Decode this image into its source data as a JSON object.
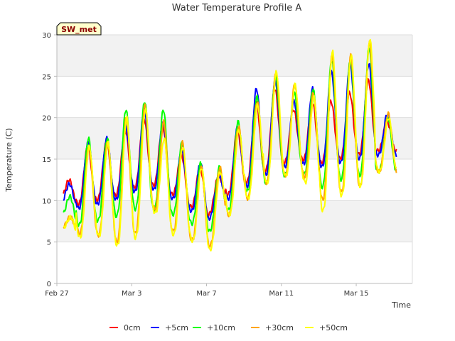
{
  "chart_data": {
    "type": "line",
    "title": "Water Temperature Profile A",
    "xlabel": "Time",
    "ylabel": "Temperature (C)",
    "badge": "SW_met",
    "x_start": "Feb 27",
    "x_end": "Mar 17",
    "xlim": [
      0,
      19
    ],
    "ylim": [
      0,
      30
    ],
    "yticks": [
      0,
      5,
      10,
      15,
      20,
      25,
      30
    ],
    "xticks": [
      {
        "label": "Feb 27",
        "day": 0
      },
      {
        "label": "Mar 3",
        "day": 4
      },
      {
        "label": "Mar 7",
        "day": 8
      },
      {
        "label": "Mar 11",
        "day": 12
      },
      {
        "label": "Mar 15",
        "day": 16
      }
    ],
    "grid": true,
    "legend_position": "bottom",
    "series": [
      {
        "name": "0cm",
        "color": "#ff0000",
        "daily_min": [
          10.5,
          9.5,
          10.0,
          10.5,
          11.5,
          12.0,
          11.0,
          9.5,
          8.0,
          10.5,
          12.0,
          13.5,
          14.5,
          15.0,
          14.5,
          15.0,
          15.5,
          16.0
        ],
        "daily_max": [
          12.5,
          16.5,
          17.0,
          18.5,
          20.0,
          19.0,
          15.5,
          14.0,
          13.0,
          18.5,
          22.0,
          23.5,
          21.0,
          22.0,
          22.0,
          23.0,
          24.5,
          19.5
        ]
      },
      {
        "name": "+5cm",
        "color": "#0000ff",
        "daily_min": [
          10.0,
          9.0,
          9.5,
          10.0,
          11.0,
          11.5,
          10.5,
          9.0,
          7.5,
          10.0,
          11.5,
          13.0,
          14.0,
          14.5,
          14.0,
          14.5,
          15.0,
          15.5
        ],
        "daily_max": [
          12.0,
          17.0,
          17.5,
          19.0,
          21.0,
          19.5,
          16.0,
          14.5,
          13.0,
          19.0,
          23.5,
          24.5,
          22.0,
          23.5,
          25.5,
          26.5,
          26.5,
          20.5
        ]
      },
      {
        "name": "+10cm",
        "color": "#00ff00",
        "daily_min": [
          8.5,
          7.0,
          7.5,
          8.0,
          9.0,
          9.0,
          8.5,
          7.5,
          6.0,
          8.5,
          11.0,
          12.0,
          13.0,
          13.5,
          11.5,
          12.5,
          13.0,
          13.5
        ],
        "daily_max": [
          10.5,
          17.5,
          17.5,
          21.0,
          22.0,
          21.0,
          17.0,
          14.5,
          14.0,
          19.5,
          22.5,
          25.0,
          23.0,
          23.5,
          27.0,
          27.0,
          28.5,
          20.0
        ]
      },
      {
        "name": "+30cm",
        "color": "#ffa500",
        "daily_min": [
          7.0,
          6.0,
          6.0,
          5.0,
          5.5,
          9.5,
          6.5,
          5.5,
          4.0,
          8.0,
          10.0,
          12.0,
          13.0,
          13.5,
          10.0,
          11.0,
          11.5,
          13.5
        ],
        "daily_max": [
          8.0,
          16.5,
          17.0,
          20.0,
          21.5,
          19.5,
          17.0,
          14.0,
          14.0,
          19.0,
          22.0,
          25.5,
          24.0,
          23.0,
          27.5,
          27.5,
          29.0,
          20.5
        ]
      },
      {
        "name": "+50cm",
        "color": "#ffff00",
        "daily_min": [
          7.0,
          5.5,
          6.0,
          4.5,
          5.0,
          9.0,
          6.0,
          5.5,
          3.5,
          8.0,
          10.0,
          12.0,
          13.0,
          13.0,
          8.5,
          10.5,
          11.5,
          13.5
        ],
        "daily_max": [
          8.0,
          16.5,
          17.0,
          20.0,
          21.0,
          17.5,
          16.5,
          14.0,
          13.5,
          18.5,
          21.5,
          25.5,
          24.0,
          22.5,
          28.0,
          27.5,
          29.5,
          20.0
        ]
      }
    ]
  }
}
